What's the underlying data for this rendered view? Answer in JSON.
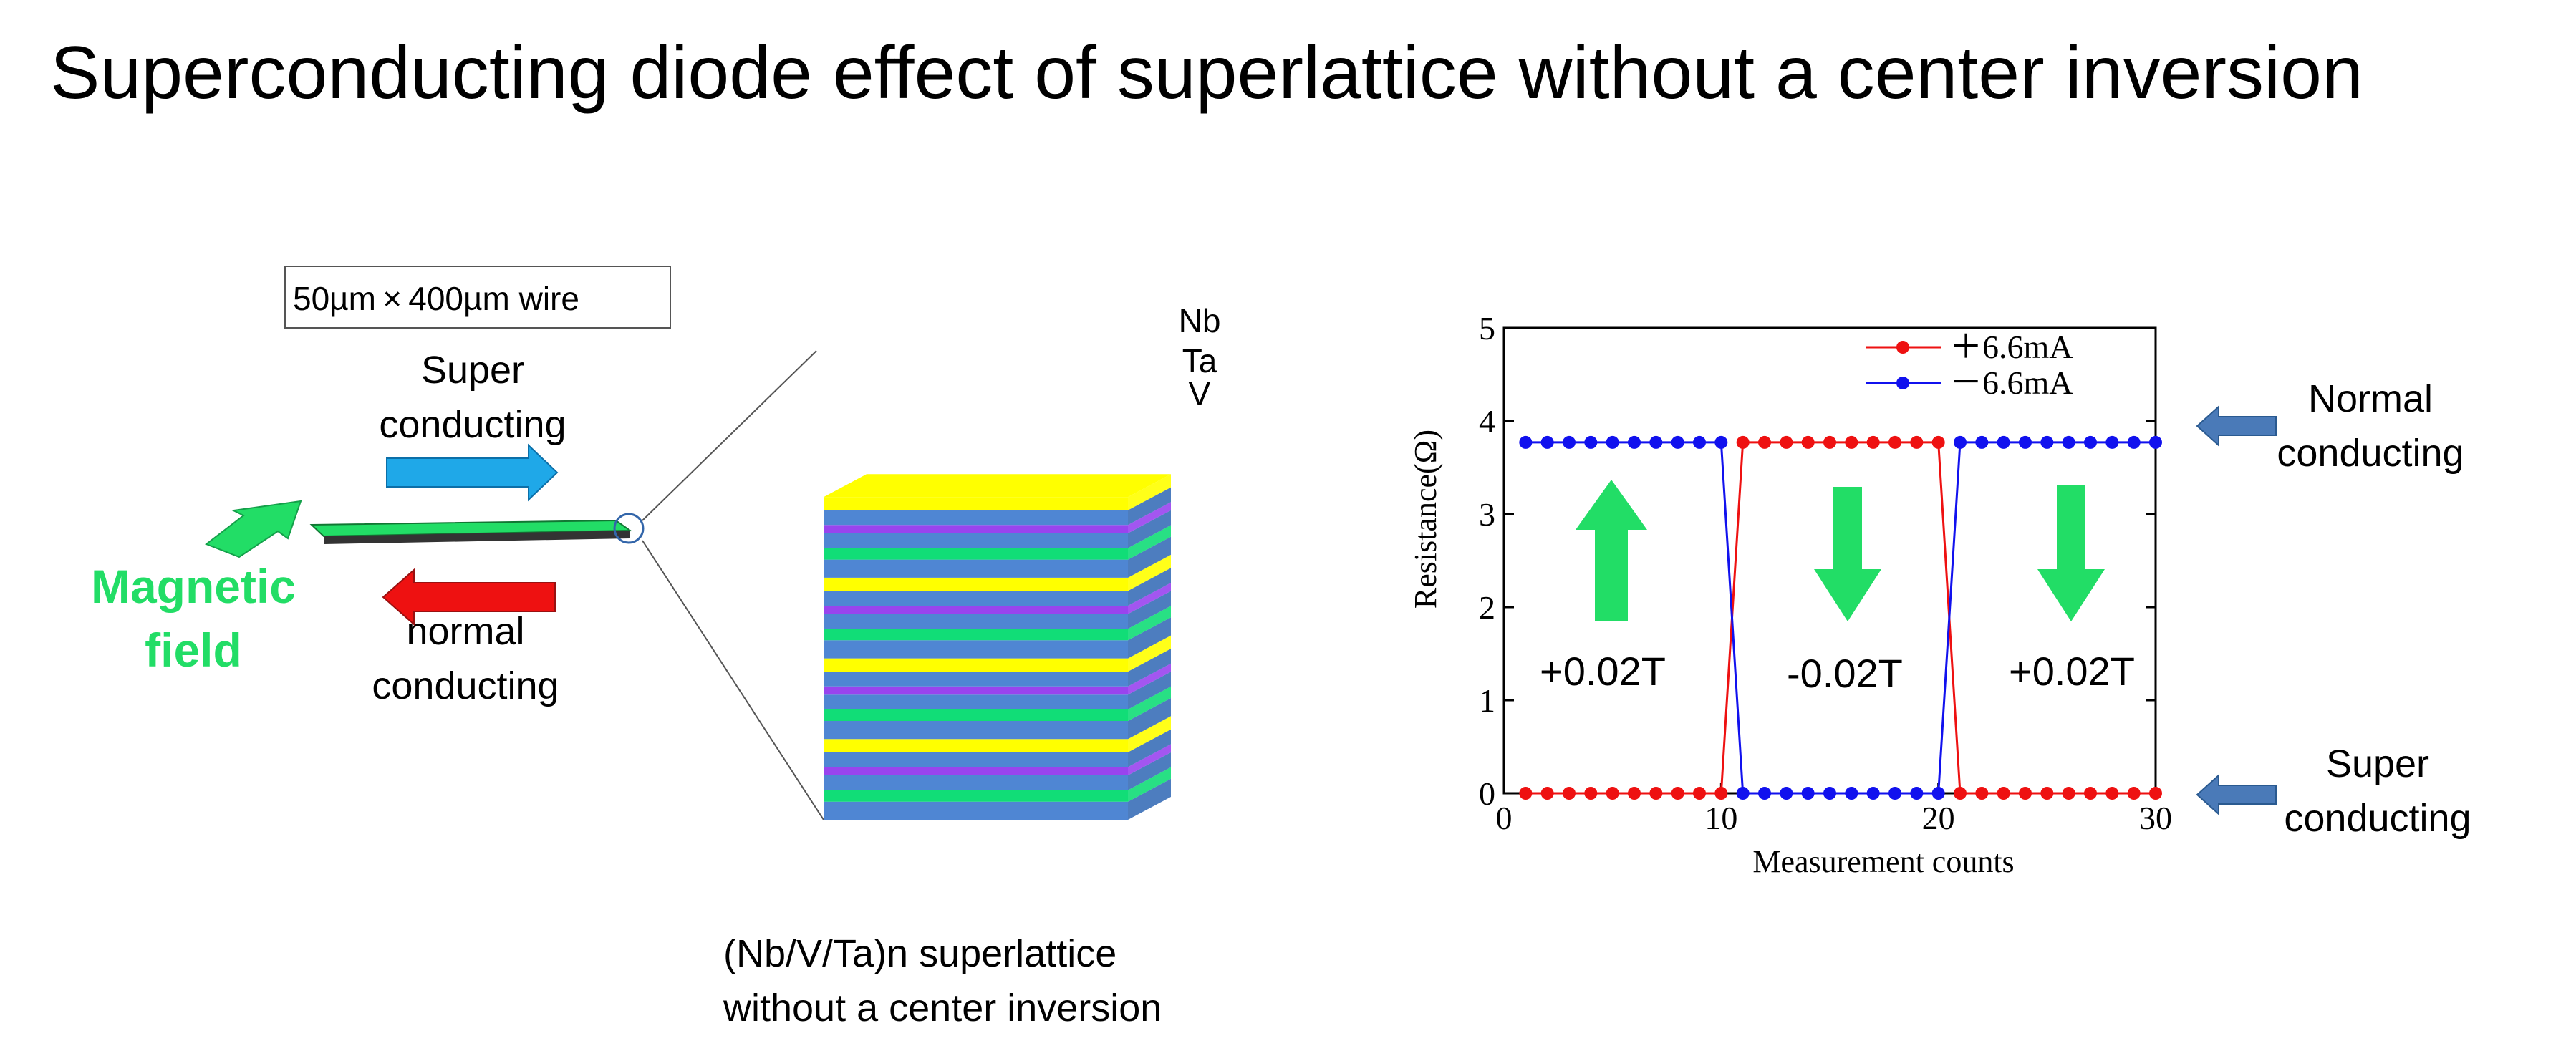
{
  "title": "Superconducting diode effect of superlattice without a center inversion",
  "left_diagram": {
    "wire_box": "50µm × 400µm wire",
    "super_label_line1": "Super",
    "super_label_line2": "conducting",
    "normal_label_line1": "normal",
    "normal_label_line2": "conducting",
    "magnetic_line1": "Magnetic",
    "magnetic_line2": "field",
    "stack_caption_line1": "(Nb/V/Ta)n  superlattice",
    "stack_caption_line2": "without a center inversion",
    "layer_labels": [
      "Nb",
      "Ta",
      "V"
    ],
    "colors": {
      "super_arrow": "#1fa8e8",
      "normal_arrow": "#ee1111",
      "field": "#22dd66",
      "nb": "#ffff00",
      "ta": "#9944ee",
      "v": "#11dd77",
      "base": "#5b8fd6"
    }
  },
  "chart_data": {
    "type": "line",
    "xlabel": "Measurement counts",
    "ylabel": "Resistance(Ω)",
    "xlim": [
      0,
      30
    ],
    "ylim": [
      0,
      5
    ],
    "xticks": [
      0,
      10,
      20,
      30
    ],
    "yticks": [
      0,
      1,
      2,
      3,
      4,
      5
    ],
    "series": [
      {
        "name": "＋6.6mA",
        "color": "#ee1111",
        "x": [
          1,
          2,
          3,
          4,
          5,
          6,
          7,
          8,
          9,
          10,
          11,
          12,
          13,
          14,
          15,
          16,
          17,
          18,
          19,
          20,
          21,
          22,
          23,
          24,
          25,
          26,
          27,
          28,
          29,
          30
        ],
        "y": [
          0,
          0,
          0,
          0,
          0,
          0,
          0,
          0,
          0,
          0,
          3.77,
          3.77,
          3.77,
          3.77,
          3.77,
          3.77,
          3.77,
          3.77,
          3.77,
          3.77,
          0,
          0,
          0,
          0,
          0,
          0,
          0,
          0,
          0,
          0
        ]
      },
      {
        "name": "－6.6mA",
        "color": "#1111ee",
        "x": [
          1,
          2,
          3,
          4,
          5,
          6,
          7,
          8,
          9,
          10,
          11,
          12,
          13,
          14,
          15,
          16,
          17,
          18,
          19,
          20,
          21,
          22,
          23,
          24,
          25,
          26,
          27,
          28,
          29,
          30
        ],
        "y": [
          3.77,
          3.77,
          3.77,
          3.77,
          3.77,
          3.77,
          3.77,
          3.77,
          3.77,
          3.77,
          0,
          0,
          0,
          0,
          0,
          0,
          0,
          0,
          0,
          0,
          3.77,
          3.77,
          3.77,
          3.77,
          3.77,
          3.77,
          3.77,
          3.77,
          3.77,
          3.77
        ]
      }
    ],
    "field_annotations": [
      "+0.02T",
      "-0.02T",
      "+0.02T"
    ],
    "right_labels": {
      "normal_line1": "Normal",
      "normal_line2": "conducting",
      "super_line1": "Super",
      "super_line2": "conducting"
    }
  }
}
